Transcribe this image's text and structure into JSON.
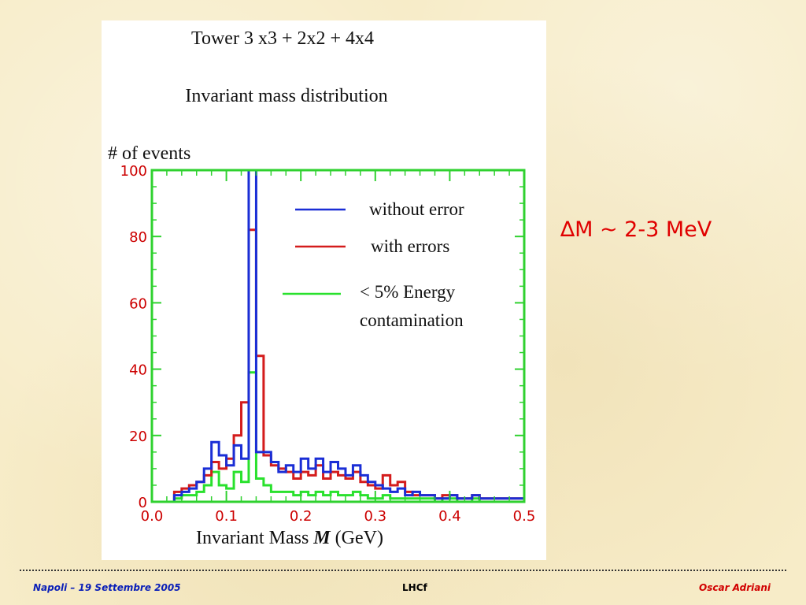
{
  "slide": {
    "delta_symbol": "∆",
    "delta_text": "M ~ 2-3 MeV",
    "footer_left": "Napoli – 19 Settembre 2005",
    "footer_center": "LHCf",
    "footer_right": "Oscar Adriani"
  },
  "colors": {
    "background": "#f7ecc8",
    "delta_text": "#e00000",
    "footer_left": "#0a1fb8",
    "footer_right": "#d10000",
    "frame": "#2fd12f",
    "tick_labels": "#cc0000"
  },
  "chart_data": {
    "type": "histogram",
    "title": "Tower  3 x3   + 2x2 + 4x4",
    "subtitle": "Invariant mass distribution",
    "ylabel": "# of events",
    "xlabel": "Invariant Mass ",
    "xlabel_italic": "M",
    "xlabel_unit": " (GeV)",
    "xlim": [
      0.0,
      0.5
    ],
    "ylim": [
      0,
      100
    ],
    "x_tick_labels": [
      "0.0",
      "0.1",
      "0.2",
      "0.3",
      "0.4",
      "0.5"
    ],
    "y_tick_labels": [
      "0",
      "20",
      "40",
      "60",
      "80",
      "100"
    ],
    "legend_position": "top-right",
    "bin_edges": [
      0.03,
      0.04,
      0.05,
      0.06,
      0.07,
      0.08,
      0.09,
      0.1,
      0.11,
      0.12,
      0.13,
      0.14,
      0.15,
      0.16,
      0.17,
      0.18,
      0.19,
      0.2,
      0.21,
      0.22,
      0.23,
      0.24,
      0.25,
      0.26,
      0.27,
      0.28,
      0.29,
      0.3,
      0.31,
      0.32,
      0.33,
      0.34,
      0.35,
      0.36,
      0.37,
      0.38,
      0.39,
      0.4,
      0.41,
      0.42,
      0.43,
      0.44,
      0.45,
      0.46,
      0.47,
      0.48,
      0.49,
      0.5
    ],
    "series": [
      {
        "name": "without error",
        "color": "#1a2ed6",
        "values": [
          2,
          3,
          4,
          6,
          10,
          18,
          14,
          11,
          17,
          13,
          100,
          15,
          15,
          12,
          9,
          11,
          9,
          13,
          10,
          13,
          9,
          12,
          10,
          8,
          11,
          8,
          6,
          5,
          4,
          3,
          4,
          2,
          3,
          2,
          2,
          1,
          1,
          2,
          1,
          1,
          2,
          1,
          1,
          1,
          1,
          1,
          1
        ]
      },
      {
        "name": "with errors",
        "color": "#d41c1c",
        "values": [
          3,
          4,
          5,
          6,
          8,
          12,
          10,
          13,
          20,
          30,
          82,
          44,
          14,
          11,
          10,
          9,
          7,
          9,
          8,
          11,
          7,
          9,
          8,
          7,
          9,
          6,
          5,
          4,
          8,
          5,
          6,
          3,
          2,
          2,
          2,
          1,
          2,
          2,
          1,
          1,
          2,
          1,
          1,
          1,
          1,
          1,
          1
        ]
      },
      {
        "name": "< 5% Energy contamination",
        "name_line2": "contamination",
        "name_line1": "< 5% Energy",
        "color": "#29e12d",
        "values": [
          1,
          2,
          2,
          3,
          5,
          9,
          5,
          4,
          9,
          6,
          39,
          7,
          5,
          3,
          3,
          3,
          2,
          3,
          2,
          3,
          2,
          3,
          2,
          2,
          3,
          2,
          1,
          1,
          2,
          1,
          1,
          1,
          1,
          1,
          1,
          0,
          1,
          1,
          0,
          0,
          1,
          0,
          0,
          0,
          0,
          0,
          0
        ]
      }
    ]
  }
}
